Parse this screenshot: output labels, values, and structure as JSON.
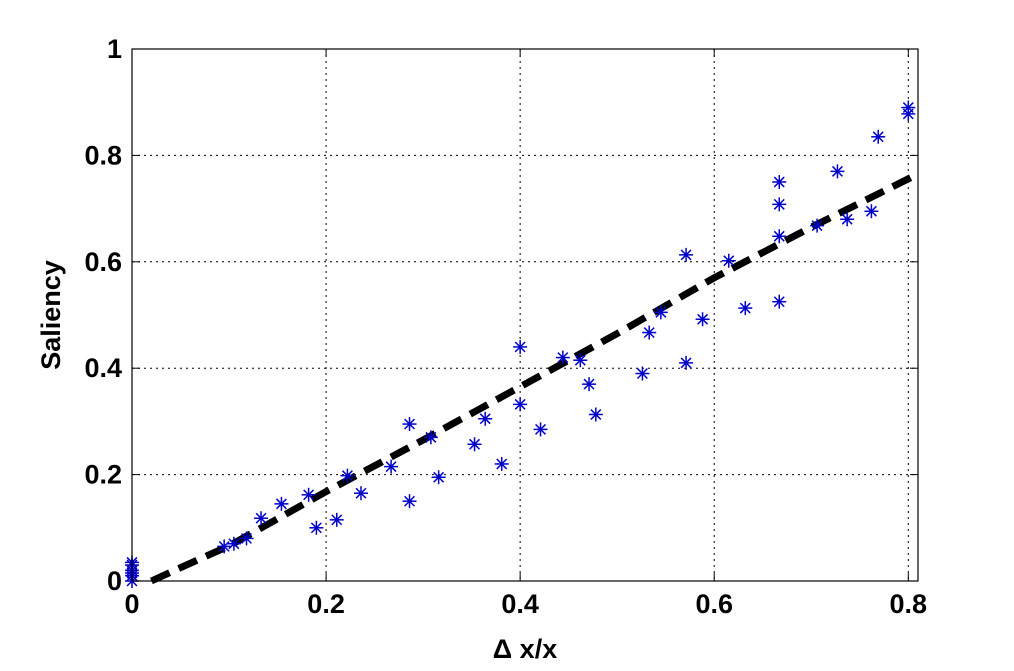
{
  "chart_data": {
    "type": "scatter",
    "title": "",
    "xlabel": "Δ x/x",
    "ylabel": "Saliency",
    "xlim": [
      0,
      0.81
    ],
    "ylim": [
      0,
      1
    ],
    "x_ticks": [
      0,
      0.2,
      0.4,
      0.6,
      0.8
    ],
    "y_ticks": [
      0,
      0.2,
      0.4,
      0.6,
      0.8,
      1
    ],
    "x_tick_labels": [
      "0",
      "0.2",
      "0.4",
      "0.6",
      "0.8"
    ],
    "y_tick_labels": [
      "0",
      "0.2",
      "0.4",
      "0.6",
      "0.8",
      "1"
    ],
    "grid": true,
    "colors": {
      "points": "#0000cc",
      "fit_line": "#000000",
      "axis": "#000000",
      "grid": "#000000"
    },
    "series": [
      {
        "type": "scatter",
        "marker": "asterisk",
        "points": [
          {
            "x": 0,
            "y": 0.0
          },
          {
            "x": 0,
            "y": 0.01
          },
          {
            "x": 0,
            "y": 0.015
          },
          {
            "x": 0,
            "y": 0.02
          },
          {
            "x": 0,
            "y": 0.03
          },
          {
            "x": 0,
            "y": 0.035
          },
          {
            "x": 0.095,
            "y": 0.065
          },
          {
            "x": 0.105,
            "y": 0.07
          },
          {
            "x": 0.118,
            "y": 0.08
          },
          {
            "x": 0.133,
            "y": 0.118
          },
          {
            "x": 0.154,
            "y": 0.145
          },
          {
            "x": 0.182,
            "y": 0.162
          },
          {
            "x": 0.19,
            "y": 0.1
          },
          {
            "x": 0.211,
            "y": 0.115
          },
          {
            "x": 0.222,
            "y": 0.198
          },
          {
            "x": 0.236,
            "y": 0.165
          },
          {
            "x": 0.267,
            "y": 0.215
          },
          {
            "x": 0.286,
            "y": 0.15
          },
          {
            "x": 0.286,
            "y": 0.295
          },
          {
            "x": 0.308,
            "y": 0.27
          },
          {
            "x": 0.316,
            "y": 0.195
          },
          {
            "x": 0.353,
            "y": 0.257
          },
          {
            "x": 0.364,
            "y": 0.305
          },
          {
            "x": 0.381,
            "y": 0.22
          },
          {
            "x": 0.4,
            "y": 0.44
          },
          {
            "x": 0.4,
            "y": 0.332
          },
          {
            "x": 0.421,
            "y": 0.285
          },
          {
            "x": 0.444,
            "y": 0.42
          },
          {
            "x": 0.462,
            "y": 0.415
          },
          {
            "x": 0.471,
            "y": 0.37
          },
          {
            "x": 0.478,
            "y": 0.313
          },
          {
            "x": 0.526,
            "y": 0.39
          },
          {
            "x": 0.533,
            "y": 0.467
          },
          {
            "x": 0.545,
            "y": 0.505
          },
          {
            "x": 0.571,
            "y": 0.613
          },
          {
            "x": 0.571,
            "y": 0.41
          },
          {
            "x": 0.588,
            "y": 0.492
          },
          {
            "x": 0.615,
            "y": 0.602
          },
          {
            "x": 0.632,
            "y": 0.513
          },
          {
            "x": 0.667,
            "y": 0.75
          },
          {
            "x": 0.667,
            "y": 0.708
          },
          {
            "x": 0.667,
            "y": 0.648
          },
          {
            "x": 0.667,
            "y": 0.525
          },
          {
            "x": 0.706,
            "y": 0.668
          },
          {
            "x": 0.727,
            "y": 0.77
          },
          {
            "x": 0.737,
            "y": 0.68
          },
          {
            "x": 0.762,
            "y": 0.695
          },
          {
            "x": 0.769,
            "y": 0.835
          },
          {
            "x": 0.8,
            "y": 0.89
          },
          {
            "x": 0.8,
            "y": 0.878
          }
        ]
      },
      {
        "type": "line",
        "style": "dashed",
        "points": [
          {
            "x": 0.02,
            "y": 0.0
          },
          {
            "x": 0.05,
            "y": 0.025
          },
          {
            "x": 0.1,
            "y": 0.066
          },
          {
            "x": 0.2,
            "y": 0.168
          },
          {
            "x": 0.3,
            "y": 0.265
          },
          {
            "x": 0.4,
            "y": 0.365
          },
          {
            "x": 0.5,
            "y": 0.465
          },
          {
            "x": 0.6,
            "y": 0.57
          },
          {
            "x": 0.7,
            "y": 0.665
          },
          {
            "x": 0.81,
            "y": 0.765
          }
        ]
      }
    ]
  }
}
